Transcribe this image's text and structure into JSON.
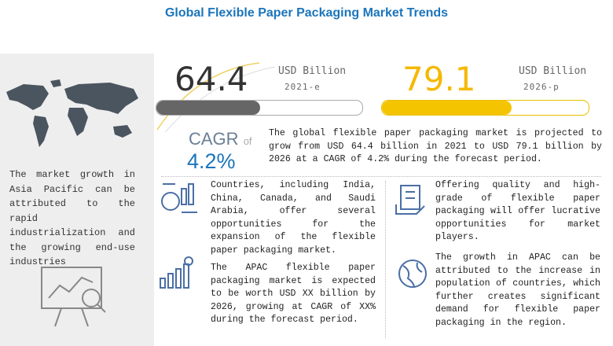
{
  "header": {
    "title": "Global Flexible Paper Packaging Market Trends"
  },
  "sidebar": {
    "text": "The market growth in Asia Pacific can be attributed to the rapid industrialization and the growing end-use industries"
  },
  "metrics": [
    {
      "value": "64.4",
      "unit": "USD Billion",
      "year": "2021-e"
    },
    {
      "value": "79.1",
      "unit": "USD Billion",
      "year": "2026-p"
    }
  ],
  "cagr": {
    "label": "CAGR",
    "of": "of",
    "value": "4.2%",
    "text": "The global flexible paper packaging market is projected to grow from USD 64.4 billion in 2021 to USD 79.1 billion by 2026 at a CAGR of 4.2% during the forecast period."
  },
  "points": [
    "Countries, including India, China, Canada, and Saudi Arabia, offer several opportunities for the expansion of the flexible paper packaging market.",
    "The APAC flexible paper packaging market is expected to be worth USD XX billion by 2026, growing at CAGR of XX% during the forecast period.",
    "Offering quality and high-grade of flexible paper packaging will offer lucrative opportunities for market players.",
    "The growth in APAC can be attributed to the increase in population of countries, which further creates significant demand for flexible paper packaging in the region."
  ]
}
